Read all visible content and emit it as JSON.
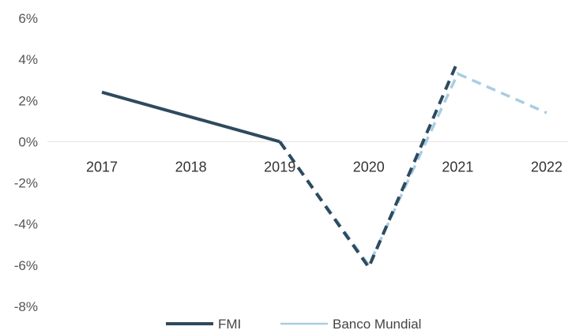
{
  "chart_data": {
    "type": "line",
    "categories": [
      "2017",
      "2018",
      "2019",
      "2020",
      "2021",
      "2022"
    ],
    "yticks": [
      "6%",
      "4%",
      "2%",
      "0%",
      "-2%",
      "-4%",
      "-6%",
      "-8%"
    ],
    "ylim": [
      -8,
      6
    ],
    "grid": false,
    "legend_position": "bottom",
    "series": [
      {
        "name": "FMI",
        "color": "#2e4a5e",
        "values": [
          2.4,
          1.2,
          0.0,
          -6.1,
          3.9,
          null
        ],
        "dashed_from_index": 2
      },
      {
        "name": "Banco Mundial",
        "color": "#a8cde3",
        "values": [
          2.4,
          1.2,
          0.0,
          -6.0,
          3.3,
          1.4
        ],
        "dashed_from_index": 2
      }
    ]
  }
}
